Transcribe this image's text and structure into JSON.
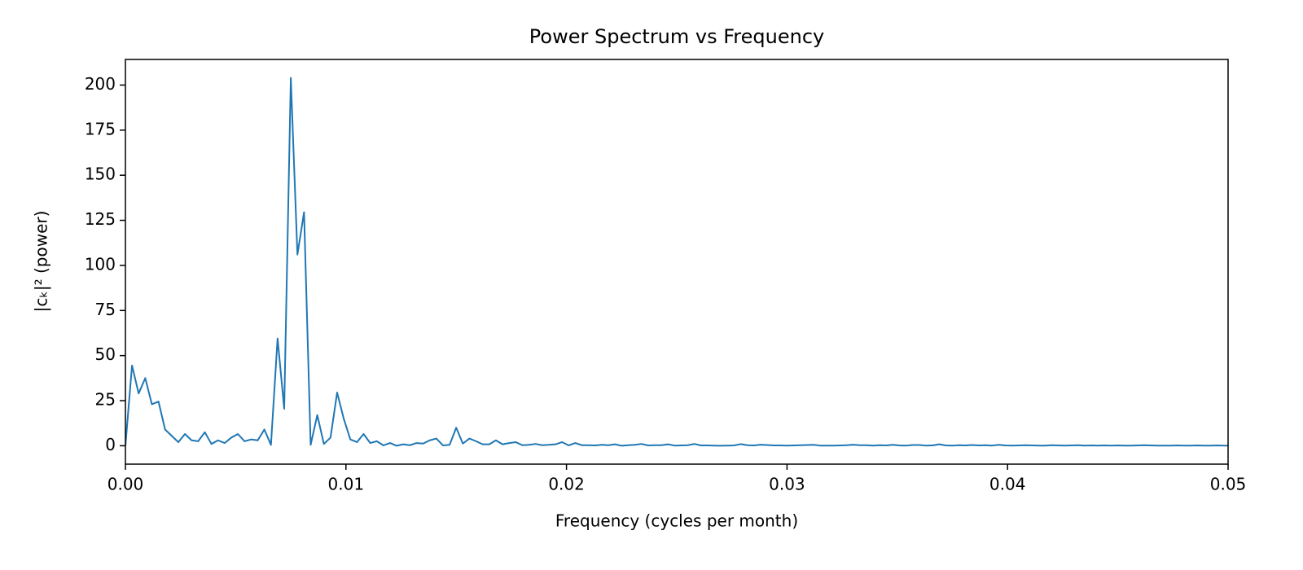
{
  "chart_data": {
    "type": "line",
    "title": "Power Spectrum vs Frequency",
    "xlabel": "Frequency (cycles per month)",
    "ylabel": "|cₖ|² (power)",
    "color": "#1f77b4",
    "x": [
      0,
      0.0003,
      0.0006,
      0.0009,
      0.0012,
      0.0015,
      0.0018,
      0.0021,
      0.0024,
      0.0027,
      0.003,
      0.0033,
      0.0036,
      0.0039,
      0.0042,
      0.0045,
      0.0048,
      0.0051,
      0.0054,
      0.0057,
      0.006,
      0.0063,
      0.0066,
      0.0069,
      0.0072,
      0.0075,
      0.0078,
      0.0081,
      0.0084,
      0.0087,
      0.009,
      0.0093,
      0.0096,
      0.0099,
      0.0102,
      0.0105,
      0.0108,
      0.0111,
      0.0114,
      0.0117,
      0.012,
      0.0123,
      0.0126,
      0.0129,
      0.0132,
      0.0135,
      0.0138,
      0.0141,
      0.0144,
      0.0147,
      0.015,
      0.0153,
      0.0156,
      0.0159,
      0.0162,
      0.0165,
      0.0168,
      0.0171,
      0.0174,
      0.0177,
      0.018,
      0.0183,
      0.0186,
      0.0189,
      0.0192,
      0.0195,
      0.0198,
      0.0201,
      0.0204,
      0.0207,
      0.021,
      0.0213,
      0.0216,
      0.0219,
      0.0222,
      0.0225,
      0.0228,
      0.0231,
      0.0234,
      0.0237,
      0.024,
      0.0243,
      0.0246,
      0.0249,
      0.0252,
      0.0255,
      0.0258,
      0.0261,
      0.0264,
      0.0267,
      0.027,
      0.0273,
      0.0276,
      0.0279,
      0.0282,
      0.0285,
      0.0288,
      0.0291,
      0.0294,
      0.0297,
      0.03,
      0.0303,
      0.0306,
      0.0309,
      0.0312,
      0.0315,
      0.0318,
      0.0321,
      0.0324,
      0.0327,
      0.033,
      0.0333,
      0.0336,
      0.0339,
      0.0342,
      0.0345,
      0.0348,
      0.0351,
      0.0354,
      0.0357,
      0.036,
      0.0363,
      0.0366,
      0.0369,
      0.0372,
      0.0375,
      0.0378,
      0.0381,
      0.0384,
      0.0387,
      0.039,
      0.0393,
      0.0396,
      0.0399,
      0.0402,
      0.0405,
      0.0408,
      0.0411,
      0.0414,
      0.0417,
      0.042,
      0.0423,
      0.0426,
      0.0429,
      0.0432,
      0.0435,
      0.0438,
      0.0441,
      0.0444,
      0.0447,
      0.045,
      0.0453,
      0.0456,
      0.0459,
      0.0462,
      0.0465,
      0.0468,
      0.0471,
      0.0474,
      0.0477,
      0.048,
      0.0483,
      0.0486,
      0.0489,
      0.0492,
      0.0495,
      0.0498,
      0.0501
    ],
    "values": [
      0,
      44.5,
      29,
      37.5,
      23,
      24.5,
      9,
      5.5,
      2,
      6.5,
      3,
      2.5,
      7.5,
      1,
      3,
      1.5,
      4.5,
      6.5,
      2.5,
      3.5,
      3,
      9,
      0.5,
      59.5,
      20.5,
      204,
      106,
      129.5,
      0.5,
      17,
      1,
      4.5,
      29.5,
      15,
      3.5,
      2,
      6.5,
      1.5,
      2.5,
      0.2,
      1.5,
      0,
      0.8,
      0.3,
      1.5,
      1.2,
      3,
      4,
      0.2,
      0.5,
      10,
      1.2,
      4,
      2.5,
      0.8,
      0.8,
      3,
      0.8,
      1.5,
      2,
      0.3,
      0.5,
      1,
      0.3,
      0.5,
      0.8,
      2,
      0.2,
      1.5,
      0.3,
      0.3,
      0.2,
      0.5,
      0.3,
      0.8,
      0,
      0.3,
      0.5,
      1,
      0.2,
      0.3,
      0.3,
      0.8,
      0.1,
      0.2,
      0.3,
      1,
      0.2,
      0.2,
      0.1,
      0,
      0.1,
      0.2,
      0.9,
      0.3,
      0.2,
      0.6,
      0.4,
      0.2,
      0.2,
      0.1,
      0.2,
      0.3,
      0.4,
      0.5,
      0.1,
      0.1,
      0.1,
      0.2,
      0.3,
      0.6,
      0.3,
      0.3,
      0.1,
      0.3,
      0.2,
      0.5,
      0.2,
      0.1,
      0.4,
      0.4,
      0.1,
      0.2,
      0.8,
      0.2,
      0.1,
      0.3,
      0.2,
      0.4,
      0.2,
      0.3,
      0.1,
      0.5,
      0.2,
      0.1,
      0.2,
      0.3,
      0.2,
      0.1,
      0.1,
      0.3,
      0.2,
      0.1,
      0.2,
      0.3,
      0.1,
      0.2,
      0.1,
      0.2,
      0.1,
      0.2,
      0.1,
      0.1,
      0.2,
      0.3,
      0.2,
      0.1,
      0.1,
      0.1,
      0.2,
      0.1,
      0.1,
      0.2,
      0.1,
      0.1,
      0.2,
      0.1,
      0.1
    ],
    "xlim": [
      0,
      0.05
    ],
    "xticks": [
      {
        "value": 0,
        "label": "0.00"
      },
      0.01,
      0.02,
      0.03,
      0.04,
      0.05
    ],
    "ylim": [
      -10.2,
      214.2
    ],
    "yticks": [
      0,
      25,
      50,
      75,
      100,
      125,
      150,
      175,
      200
    ],
    "grid": false
  }
}
